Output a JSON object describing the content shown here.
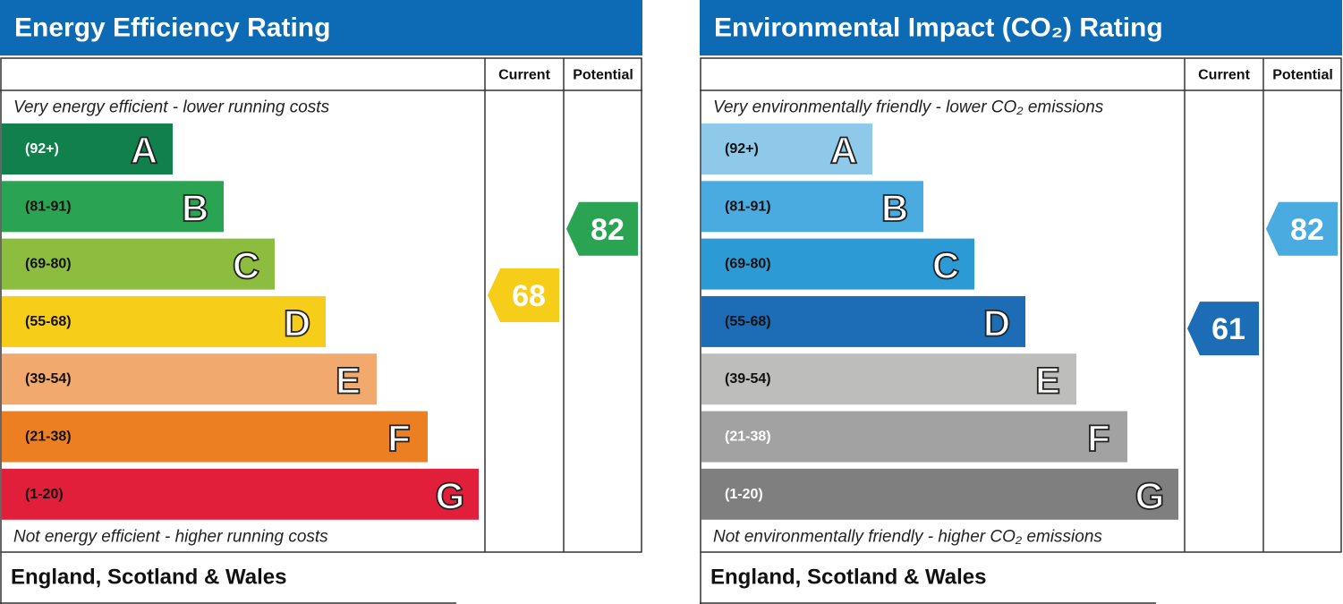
{
  "panels": [
    {
      "title": "Energy Efficiency Rating",
      "header_current": "Current",
      "header_potential": "Potential",
      "top_note": "Very energy efficient - lower running costs",
      "bottom_note": "Not energy efficient - higher running costs",
      "bands": [
        {
          "range": "(92+)",
          "letter": "A",
          "color": "#11804c",
          "text_color": "#ffffff"
        },
        {
          "range": "(81-91)",
          "letter": "B",
          "color": "#2aa352",
          "text_color": "#111111"
        },
        {
          "range": "(69-80)",
          "letter": "C",
          "color": "#8dbd3e",
          "text_color": "#111111"
        },
        {
          "range": "(55-68)",
          "letter": "D",
          "color": "#f6cd18",
          "text_color": "#111111"
        },
        {
          "range": "(39-54)",
          "letter": "E",
          "color": "#f2a96e",
          "text_color": "#111111"
        },
        {
          "range": "(21-38)",
          "letter": "F",
          "color": "#ed7f23",
          "text_color": "#111111"
        },
        {
          "range": "(1-20)",
          "letter": "G",
          "color": "#e21f3b",
          "text_color": "#111111"
        }
      ],
      "current": {
        "value": 68,
        "color": "#f6cd18"
      },
      "potential": {
        "value": 82,
        "color": "#2aa352"
      },
      "footer": "England, Scotland & Wales"
    },
    {
      "title": "Environmental Impact (CO₂) Rating",
      "header_current": "Current",
      "header_potential": "Potential",
      "top_note": "Very environmentally friendly - lower CO₂ emissions",
      "bottom_note": "Not environmentally friendly - higher CO₂ emissions",
      "bands": [
        {
          "range": "(92+)",
          "letter": "A",
          "color": "#8ec9ea",
          "text_color": "#111111"
        },
        {
          "range": "(81-91)",
          "letter": "B",
          "color": "#4aabe0",
          "text_color": "#111111"
        },
        {
          "range": "(69-80)",
          "letter": "C",
          "color": "#2c9ad4",
          "text_color": "#111111"
        },
        {
          "range": "(55-68)",
          "letter": "D",
          "color": "#1c6db5",
          "text_color": "#111111"
        },
        {
          "range": "(39-54)",
          "letter": "E",
          "color": "#bdbdbb",
          "text_color": "#111111"
        },
        {
          "range": "(21-38)",
          "letter": "F",
          "color": "#a2a2a2",
          "text_color": "#ffffff"
        },
        {
          "range": "(1-20)",
          "letter": "G",
          "color": "#7f7f7f",
          "text_color": "#ffffff"
        }
      ],
      "current": {
        "value": 61,
        "color": "#1c6db5"
      },
      "potential": {
        "value": 82,
        "color": "#4aabe0"
      },
      "footer": "England, Scotland & Wales"
    }
  ]
}
